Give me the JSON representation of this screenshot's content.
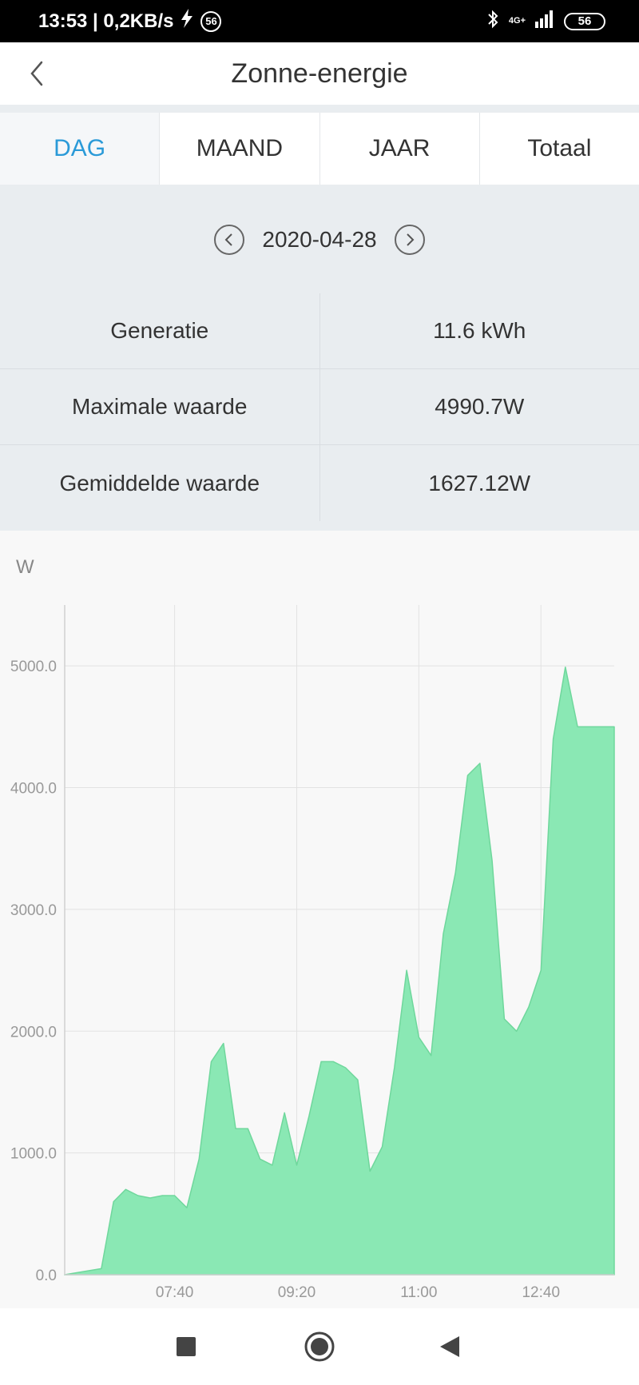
{
  "status_bar": {
    "time_speed": "13:53 | 0,2KB/s",
    "notification_count": "56",
    "network": "4G+",
    "battery": "56"
  },
  "header": {
    "title": "Zonne-energie"
  },
  "tabs": [
    {
      "label": "DAG",
      "active": true
    },
    {
      "label": "MAAND",
      "active": false
    },
    {
      "label": "JAAR",
      "active": false
    },
    {
      "label": "Totaal",
      "active": false
    }
  ],
  "date_nav": {
    "date": "2020-04-28"
  },
  "stats": [
    {
      "label": "Generatie",
      "value": "11.6 kWh"
    },
    {
      "label": "Maximale waarde",
      "value": "4990.7W"
    },
    {
      "label": "Gemiddelde waarde",
      "value": "1627.12W"
    }
  ],
  "colors": {
    "accent": "#2a9ad8",
    "chart_fill": "#8ae8b4",
    "chart_stroke": "#6fd79c"
  },
  "chart_data": {
    "type": "area",
    "ylabel": "W",
    "ylim": [
      0,
      5500
    ],
    "y_ticks": [
      "0.0",
      "1000.0",
      "2000.0",
      "3000.0",
      "4000.0",
      "5000.0"
    ],
    "x_ticks": [
      "07:40",
      "09:20",
      "11:00",
      "12:40"
    ],
    "grid": true,
    "x": [
      "06:10",
      "06:40",
      "06:50",
      "07:00",
      "07:10",
      "07:20",
      "07:30",
      "07:40",
      "07:50",
      "08:00",
      "08:10",
      "08:20",
      "08:30",
      "08:40",
      "08:50",
      "09:00",
      "09:10",
      "09:20",
      "09:30",
      "09:40",
      "09:50",
      "10:00",
      "10:10",
      "10:20",
      "10:30",
      "10:40",
      "10:50",
      "11:00",
      "11:10",
      "11:20",
      "11:30",
      "11:40",
      "11:50",
      "12:00",
      "12:10",
      "12:20",
      "12:30",
      "12:40",
      "12:50",
      "13:00",
      "13:10",
      "13:20",
      "13:30",
      "13:40"
    ],
    "values": [
      0,
      50,
      600,
      700,
      650,
      630,
      650,
      650,
      550,
      950,
      1750,
      1900,
      1200,
      1200,
      950,
      900,
      1330,
      900,
      1300,
      1750,
      1750,
      1700,
      1600,
      850,
      1050,
      1700,
      2500,
      1950,
      1800,
      2800,
      3300,
      4100,
      4200,
      3400,
      2100,
      2000,
      2200,
      2500,
      4400,
      4990,
      4500,
      4500,
      4500,
      4500
    ]
  }
}
